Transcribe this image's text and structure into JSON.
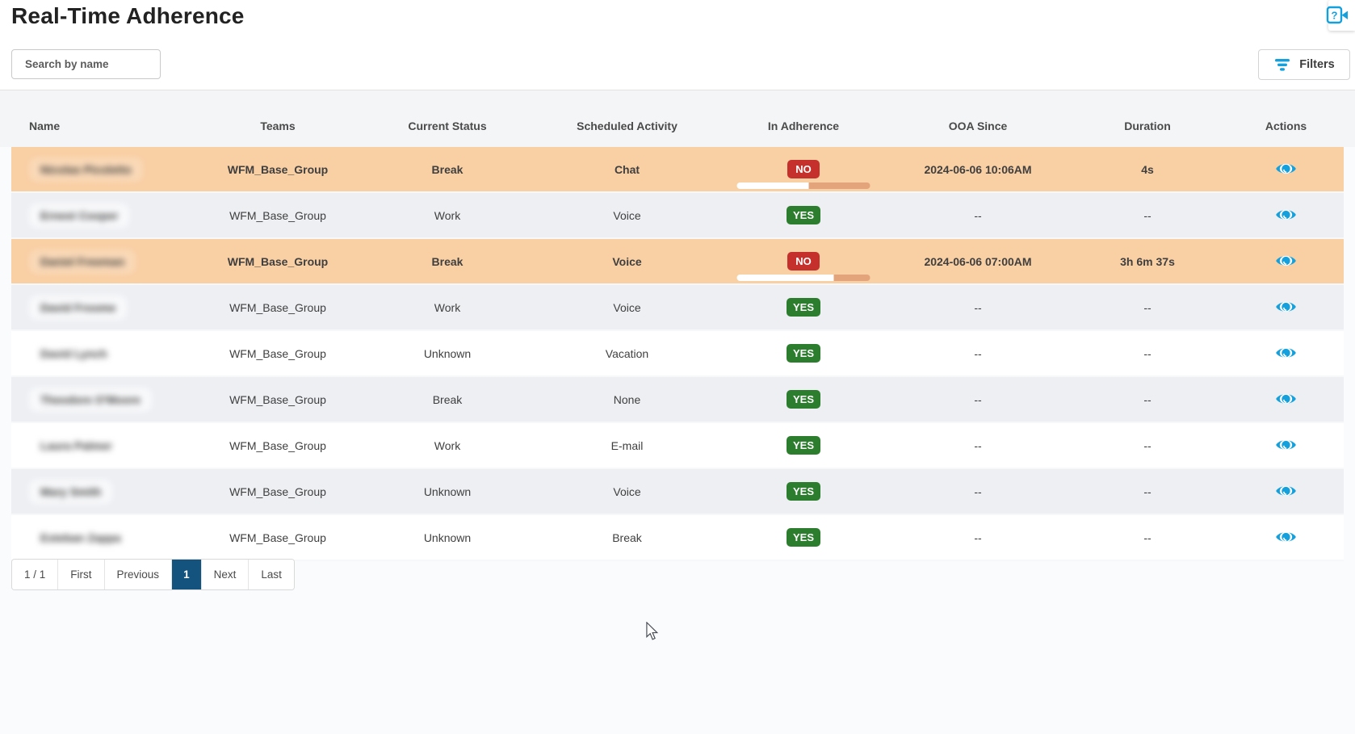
{
  "header": {
    "title": "Real-Time Adherence"
  },
  "search": {
    "placeholder": "Search by name",
    "value": ""
  },
  "filters_button": {
    "label": "Filters"
  },
  "help_button": {
    "icon": "help-question-icon"
  },
  "colors": {
    "accent_blue": "#14a0dc",
    "badge_yes": "#2c7d2d",
    "badge_no": "#c5302c",
    "row_highlight": "#f9cfa4",
    "row_alt_gray": "#edeff3",
    "adherence_bar_out": "#e3a47b",
    "active_page_bg": "#15537f"
  },
  "table": {
    "columns": [
      "Name",
      "Teams",
      "Current Status",
      "Scheduled Activity",
      "In Adherence",
      "OOA Since",
      "Duration",
      "Actions"
    ],
    "actions_icon": "eye-icon",
    "rows": [
      {
        "name": "Nicolas Picoletto",
        "name_redacted": true,
        "team": "WFM_Base_Group",
        "current_status": "Break",
        "scheduled_activity": "Chat",
        "in_adherence": "NO",
        "ooa_since": "2024-06-06 10:06AM",
        "duration": "4s",
        "highlighted": true,
        "adherence_bar_in_pct": 54
      },
      {
        "name": "Ernest Cooper",
        "name_redacted": true,
        "team": "WFM_Base_Group",
        "current_status": "Work",
        "scheduled_activity": "Voice",
        "in_adherence": "YES",
        "ooa_since": "--",
        "duration": "--",
        "highlighted": false,
        "adherence_bar_in_pct": null
      },
      {
        "name": "Daniel Freeman",
        "name_redacted": true,
        "team": "WFM_Base_Group",
        "current_status": "Break",
        "scheduled_activity": "Voice",
        "in_adherence": "NO",
        "ooa_since": "2024-06-06 07:00AM",
        "duration": "3h 6m 37s",
        "highlighted": true,
        "adherence_bar_in_pct": 73
      },
      {
        "name": "David Froome",
        "name_redacted": true,
        "team": "WFM_Base_Group",
        "current_status": "Work",
        "scheduled_activity": "Voice",
        "in_adherence": "YES",
        "ooa_since": "--",
        "duration": "--",
        "highlighted": false,
        "adherence_bar_in_pct": null
      },
      {
        "name": "David Lynch",
        "name_redacted": true,
        "team": "WFM_Base_Group",
        "current_status": "Unknown",
        "scheduled_activity": "Vacation",
        "in_adherence": "YES",
        "ooa_since": "--",
        "duration": "--",
        "highlighted": false,
        "adherence_bar_in_pct": null
      },
      {
        "name": "Theodore O'Moore",
        "name_redacted": true,
        "team": "WFM_Base_Group",
        "current_status": "Break",
        "scheduled_activity": "None",
        "in_adherence": "YES",
        "ooa_since": "--",
        "duration": "--",
        "highlighted": false,
        "adherence_bar_in_pct": null
      },
      {
        "name": "Laura Palmer",
        "name_redacted": true,
        "team": "WFM_Base_Group",
        "current_status": "Work",
        "scheduled_activity": "E-mail",
        "in_adherence": "YES",
        "ooa_since": "--",
        "duration": "--",
        "highlighted": false,
        "adherence_bar_in_pct": null
      },
      {
        "name": "Mary Smith",
        "name_redacted": true,
        "team": "WFM_Base_Group",
        "current_status": "Unknown",
        "scheduled_activity": "Voice",
        "in_adherence": "YES",
        "ooa_since": "--",
        "duration": "--",
        "highlighted": false,
        "adherence_bar_in_pct": null
      },
      {
        "name": "Esteban Zappa",
        "name_redacted": true,
        "team": "WFM_Base_Group",
        "current_status": "Unknown",
        "scheduled_activity": "Break",
        "in_adherence": "YES",
        "ooa_since": "--",
        "duration": "--",
        "highlighted": false,
        "adherence_bar_in_pct": null
      }
    ]
  },
  "pagination": {
    "summary": "1 / 1",
    "items": [
      {
        "label": "First",
        "active": false
      },
      {
        "label": "Previous",
        "active": false
      },
      {
        "label": "1",
        "active": true
      },
      {
        "label": "Next",
        "active": false
      },
      {
        "label": "Last",
        "active": false
      }
    ]
  }
}
